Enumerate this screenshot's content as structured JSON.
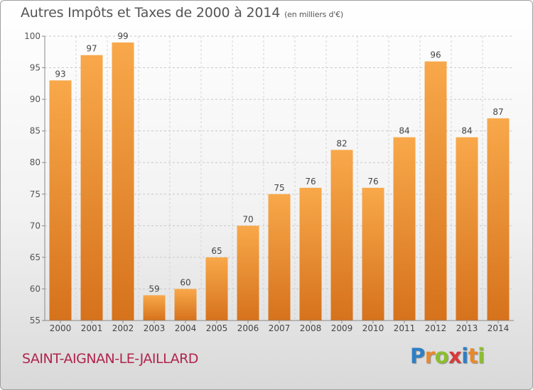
{
  "chart_data": {
    "type": "bar",
    "title": "Autres Impôts et Taxes de 2000 à 2014",
    "subtitle": "(en milliers d'€)",
    "categories": [
      "2000",
      "2001",
      "2002",
      "2003",
      "2004",
      "2005",
      "2006",
      "2007",
      "2008",
      "2009",
      "2010",
      "2011",
      "2012",
      "2013",
      "2014"
    ],
    "values": [
      93,
      97,
      99,
      59,
      60,
      65,
      70,
      75,
      76,
      82,
      76,
      84,
      96,
      84,
      87
    ],
    "ylim": [
      55,
      100
    ],
    "yticks": [
      55,
      60,
      65,
      70,
      75,
      80,
      85,
      90,
      95,
      100
    ],
    "grid": true,
    "bar_color": "#f0993c"
  },
  "location": "SAINT-AIGNAN-LE-JAILLARD",
  "logo": {
    "letters": [
      "P",
      "r",
      "o",
      "x",
      "i",
      "t",
      "i"
    ],
    "colors": [
      "#2e7fc4",
      "#e8892c",
      "#8bbf2e",
      "#d83a3a",
      "#2e7fc4",
      "#e8892c",
      "#8bbf2e"
    ]
  }
}
